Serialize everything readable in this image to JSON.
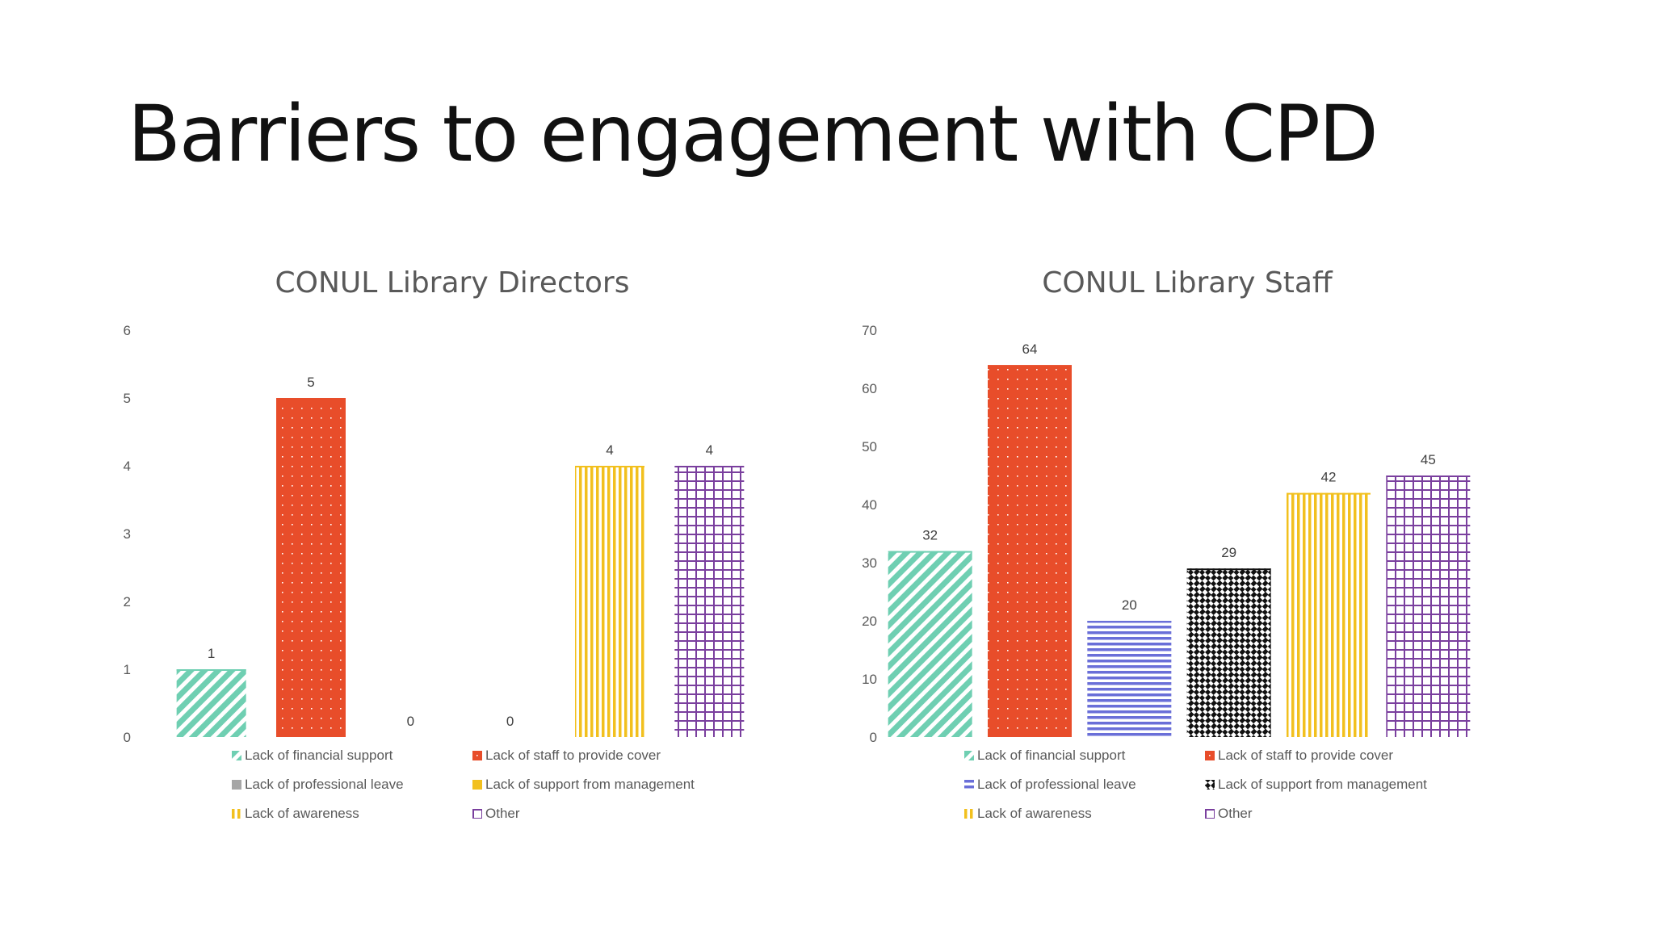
{
  "slide": {
    "title": "Barriers to engagement with CPD"
  },
  "patterns": {
    "financial": {
      "color": "#6fcfb2",
      "kind": "diagonal"
    },
    "staff": {
      "color": "#e84d2a",
      "kind": "dots"
    },
    "leave": {
      "color": "#6a6fd8",
      "kind": "horizontal"
    },
    "management": {
      "color": "#111111",
      "kind": "diagonal-bold"
    },
    "awareness": {
      "color": "#f2c01e",
      "kind": "vertical"
    },
    "other": {
      "color": "#7a3f9e",
      "kind": "grid"
    }
  },
  "chart_data": [
    {
      "type": "bar",
      "title": "CONUL Library Directors",
      "categories": [
        "Lack of financial support",
        "Lack of staff to provide cover",
        "Lack of professional leave",
        "Lack of support from management",
        "Lack of awareness",
        "Other"
      ],
      "values": [
        1,
        5,
        0,
        0,
        4,
        4
      ],
      "bar_patterns": [
        "financial",
        "staff",
        "leave",
        "management",
        "awareness",
        "other"
      ],
      "ylim": [
        0,
        6
      ],
      "yticks": [
        "0",
        "1",
        "2",
        "3",
        "4",
        "5",
        "6"
      ],
      "grid": false,
      "legend_position": "bottom",
      "legend": [
        {
          "label": "Lack of financial support",
          "pattern": "financial"
        },
        {
          "label": "Lack of staff to provide cover",
          "pattern": "staff"
        },
        {
          "label": "Lack of professional leave",
          "pattern": "solid-grey"
        },
        {
          "label": "Lack of support from management",
          "pattern": "solid-yellow"
        },
        {
          "label": "Lack of awareness",
          "pattern": "awareness"
        },
        {
          "label": "Other",
          "pattern": "other"
        }
      ]
    },
    {
      "type": "bar",
      "title": "CONUL Library Staff",
      "categories": [
        "Lack of financial support",
        "Lack of staff to provide cover",
        "Lack of professional leave",
        "Lack of support from management",
        "Lack of awareness",
        "Other"
      ],
      "values": [
        32,
        64,
        20,
        29,
        42,
        45
      ],
      "bar_patterns": [
        "financial",
        "staff",
        "leave",
        "management",
        "awareness",
        "other"
      ],
      "ylim": [
        0,
        70
      ],
      "yticks": [
        "0",
        "10",
        "20",
        "30",
        "40",
        "50",
        "60",
        "70"
      ],
      "grid": false,
      "legend_position": "bottom",
      "legend": [
        {
          "label": "Lack of financial support",
          "pattern": "financial"
        },
        {
          "label": "Lack of staff to provide cover",
          "pattern": "staff"
        },
        {
          "label": "Lack of professional leave",
          "pattern": "leave"
        },
        {
          "label": "Lack of support from management",
          "pattern": "management"
        },
        {
          "label": "Lack of awareness",
          "pattern": "awareness"
        },
        {
          "label": "Other",
          "pattern": "other"
        }
      ]
    }
  ]
}
